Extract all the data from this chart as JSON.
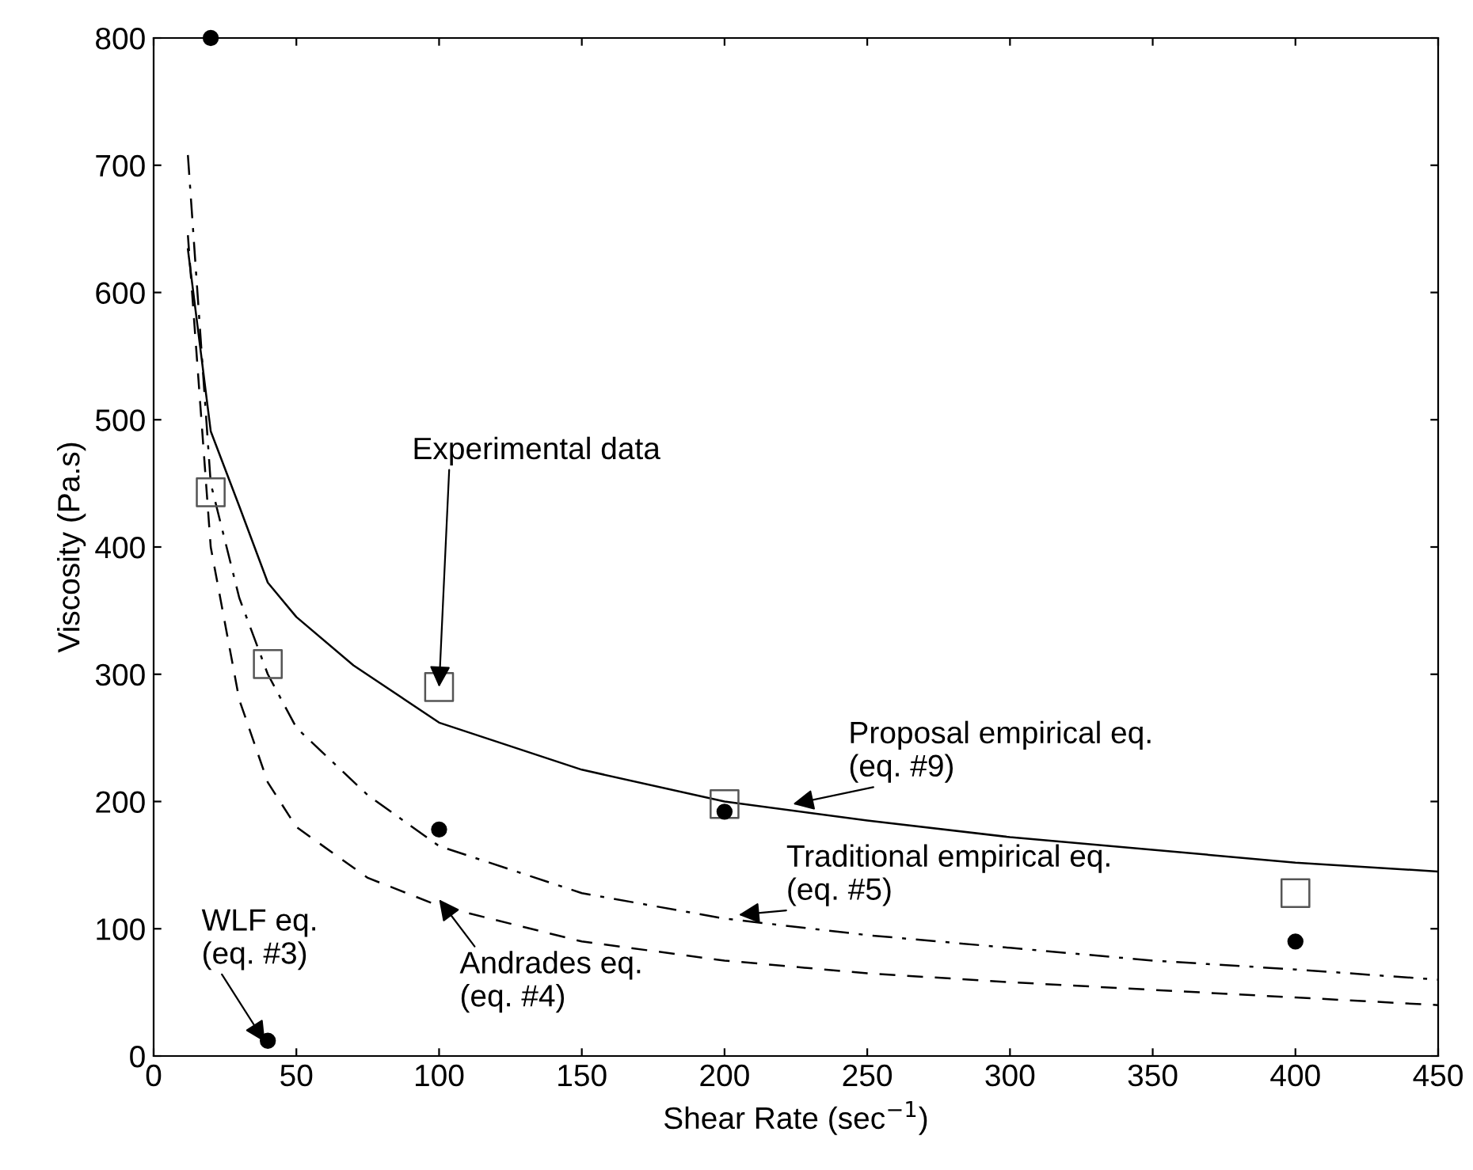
{
  "chart_data": {
    "type": "line",
    "xlabel": "Shear Rate (sec$^{−1}$)",
    "ylabel": "Viscosity (Pa.s)",
    "xlim": [
      0,
      450
    ],
    "ylim": [
      0,
      800
    ],
    "xticks": [
      0,
      50,
      100,
      150,
      200,
      250,
      300,
      350,
      400,
      450
    ],
    "yticks": [
      0,
      100,
      200,
      300,
      400,
      500,
      600,
      700,
      800
    ],
    "grid": false,
    "legend": false,
    "series": [
      {
        "color": "#000000",
        "line_style": "solid",
        "marker": "none",
        "x": [
          12,
          20,
          30,
          40,
          50,
          70,
          100,
          150,
          200,
          250,
          300,
          350,
          400,
          450
        ],
        "values": [
          634,
          491,
          432,
          372,
          345,
          307,
          262,
          225,
          200,
          185,
          172,
          162,
          152,
          145
        ]
      },
      {
        "color": "#000000",
        "line_style": "dashdot",
        "marker": "none",
        "x": [
          12,
          20,
          30,
          40,
          50,
          75,
          100,
          150,
          200,
          250,
          300,
          350,
          400,
          450
        ],
        "values": [
          708,
          450,
          360,
          300,
          258,
          205,
          165,
          128,
          108,
          95,
          85,
          75,
          68,
          60
        ]
      },
      {
        "color": "#000000",
        "line_style": "dashed",
        "marker": "none",
        "x": [
          12,
          20,
          30,
          40,
          50,
          75,
          100,
          150,
          200,
          250,
          300,
          350,
          400,
          450
        ],
        "values": [
          645,
          400,
          280,
          215,
          180,
          140,
          118,
          90,
          75,
          65,
          58,
          52,
          46,
          40
        ]
      },
      {
        "type": "scatter",
        "color": "#555555",
        "marker": "square",
        "x": [
          20,
          40,
          100,
          200,
          400
        ],
        "values": [
          443,
          308,
          290,
          198,
          128
        ]
      },
      {
        "type": "scatter",
        "color": "#000000",
        "marker": "circle",
        "x": [
          20,
          40,
          100,
          200,
          400
        ],
        "values": [
          800,
          12,
          178,
          192,
          90
        ]
      }
    ],
    "annotations": [
      {
        "text": "Experimental data",
        "x": 100,
        "y": 290
      },
      {
        "text": "Proposal empirical eq.\n(eq. #9)",
        "x": 224,
        "y": 198
      },
      {
        "text": "Traditional empirical eq.\n(eq. #5)",
        "x": 205,
        "y": 111
      },
      {
        "text": "Andrades eq.\n(eq. #4)",
        "x": 100,
        "y": 123
      },
      {
        "text": "WLF eq.\n(eq. #3)",
        "x": 39,
        "y": 11
      }
    ]
  }
}
